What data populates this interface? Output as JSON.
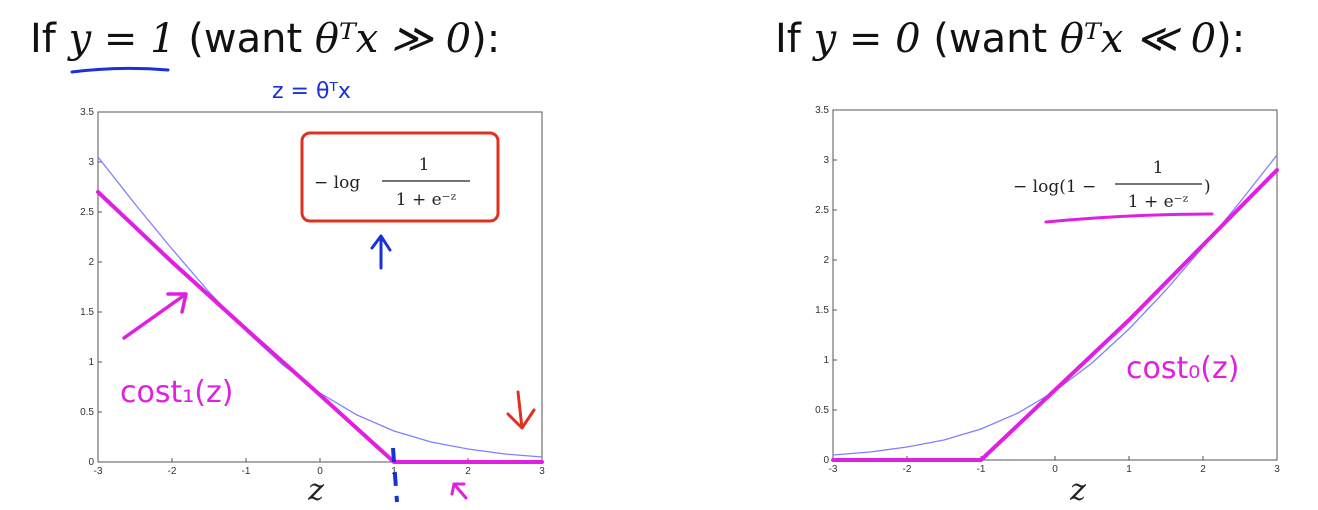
{
  "titles": {
    "left": {
      "prefix": "If ",
      "cond": "y = 1",
      "mid": " (want ",
      "want": "θᵀx ≫ 0",
      "suffix": "):"
    },
    "right": {
      "prefix": "If ",
      "cond": "y = 0",
      "mid": " (want ",
      "want": "θᵀx ≪ 0",
      "suffix": "):"
    }
  },
  "annotations": {
    "z_def": "z = θᵀx",
    "cost1": "cost₁(z)",
    "cost0": "cost₀(z)",
    "formula_left_prefix": "− log",
    "formula_left_num": "1",
    "formula_left_den": "1 + e⁻ᶻ",
    "formula_right_prefix": "− log(1 −",
    "formula_right_num": "1",
    "formula_right_den": "1 + e⁻ᶻ",
    "formula_right_suffix": ")"
  },
  "colors": {
    "sigmoid_curve": "#8080ff",
    "hand_magenta": "#e020e0",
    "hand_blue": "#1a30d8",
    "hand_red": "#e03020"
  },
  "chart_data": [
    {
      "type": "line",
      "title": "",
      "xlabel": "z",
      "ylabel": "",
      "xlim": [
        -3,
        3
      ],
      "ylim": [
        0,
        3.5
      ],
      "xticks": [
        -3,
        -2,
        -1,
        0,
        1,
        2,
        3
      ],
      "yticks": [
        0,
        0.5,
        1,
        1.5,
        2,
        2.5,
        3,
        3.5
      ],
      "series": [
        {
          "name": "",
          "function": "-log(1/(1+e^-z))",
          "x": [
            -3,
            -2.5,
            -2,
            -1.5,
            -1,
            -0.5,
            0,
            0.5,
            1,
            1.5,
            2,
            2.5,
            3
          ],
          "y": [
            3.05,
            2.58,
            2.13,
            1.7,
            1.31,
            0.97,
            0.69,
            0.47,
            0.31,
            0.2,
            0.13,
            0.08,
            0.05
          ]
        },
        {
          "name": "cost₁(z)",
          "x": [
            -3,
            -2,
            -1,
            0,
            1,
            1.5,
            2,
            3
          ],
          "y": [
            2.7,
            2.0,
            1.33,
            0.67,
            0,
            0,
            0,
            0
          ]
        }
      ]
    },
    {
      "type": "line",
      "title": "",
      "xlabel": "z",
      "ylabel": "",
      "xlim": [
        -3,
        3
      ],
      "ylim": [
        0,
        3.5
      ],
      "xticks": [
        -3,
        -2,
        -1,
        0,
        1,
        2,
        3
      ],
      "yticks": [
        0,
        0.5,
        1,
        1.5,
        2,
        2.5,
        3,
        3.5
      ],
      "series": [
        {
          "name": "",
          "function": "-log(1-1/(1+e^-z))",
          "x": [
            -3,
            -2.5,
            -2,
            -1.5,
            -1,
            -0.5,
            0,
            0.5,
            1,
            1.5,
            2,
            2.5,
            3
          ],
          "y": [
            0.05,
            0.08,
            0.13,
            0.2,
            0.31,
            0.47,
            0.69,
            0.97,
            1.31,
            1.7,
            2.13,
            2.58,
            3.05
          ]
        },
        {
          "name": "cost₀(z)",
          "x": [
            -3,
            -2,
            -1,
            0,
            1,
            2,
            3
          ],
          "y": [
            0,
            0,
            0,
            0.7,
            1.4,
            2.15,
            2.9
          ]
        }
      ]
    }
  ]
}
